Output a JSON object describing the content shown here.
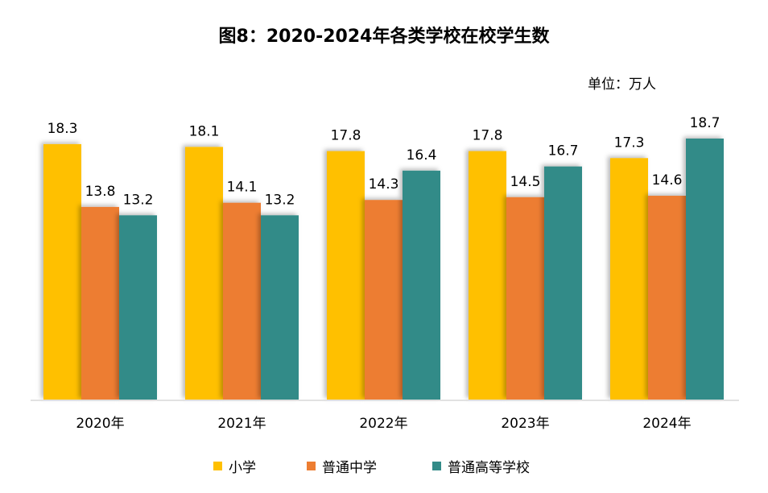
{
  "chart_data": {
    "type": "bar",
    "title": "图8：2020-2024年各类学校在校学生数",
    "unit": "单位：万人",
    "categories": [
      "2020年",
      "2021年",
      "2022年",
      "2023年",
      "2024年"
    ],
    "series": [
      {
        "name": "小学",
        "color": "#FFC000",
        "values": [
          18.3,
          18.1,
          17.8,
          17.8,
          17.3
        ],
        "labels": [
          "18.3",
          "18.1",
          "17.8",
          "17.8",
          "17.3"
        ]
      },
      {
        "name": "普通中学",
        "color": "#ED7D31",
        "values": [
          13.8,
          14.1,
          14.3,
          14.5,
          14.6
        ],
        "labels": [
          "13.8",
          "14.1",
          "14.3",
          "14.5",
          "14.6"
        ]
      },
      {
        "name": "普通高等学校",
        "color": "#338B88",
        "values": [
          13.2,
          13.2,
          16.4,
          16.7,
          18.7
        ],
        "labels": [
          "13.2",
          "13.2",
          "16.4",
          "16.7",
          "18.7"
        ]
      }
    ],
    "ylim": [
      0,
      18.7
    ],
    "grid": false,
    "legend_position": "bottom"
  }
}
